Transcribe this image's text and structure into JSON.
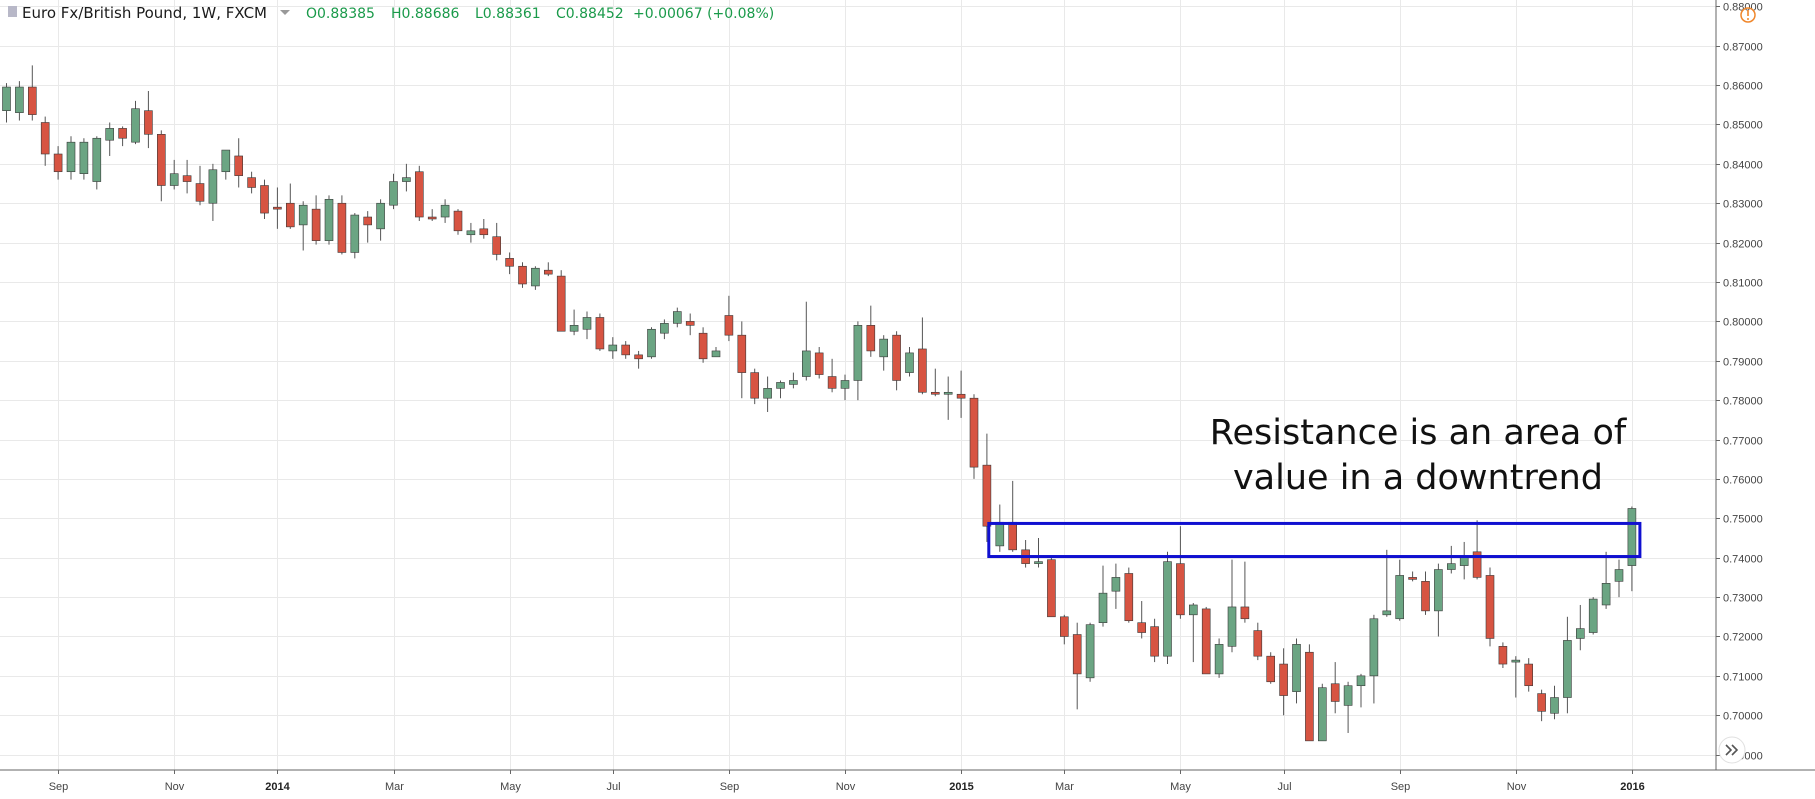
{
  "header": {
    "symbol": "Euro Fx/British Pound, 1W, FXCM",
    "open": "O0.88385",
    "high": "H0.88686",
    "low": "L0.88361",
    "close": "C0.88452",
    "change": "+0.00067 (+0.08%)"
  },
  "colors": {
    "up": "#6ba583",
    "down": "#d75442",
    "wick": "#555555",
    "grid": "#e9e9e9",
    "box": "#1010d0",
    "legend_text": "#1a9a4a"
  },
  "icons": {
    "alert": "warning-circle-icon",
    "scroll": "double-chevron-right-icon"
  },
  "annotation": {
    "line1": "Resistance is an area of",
    "line2": "value in a downtrend",
    "zone": {
      "start": "2015-01-26",
      "end": "2016-01-04",
      "low": 0.7403,
      "high": 0.7487
    }
  },
  "chart_data": {
    "type": "candlestick",
    "interval": "1W",
    "price_axis": {
      "min": 0.6861,
      "max": 0.8816,
      "ticks": [
        0.88,
        0.87,
        0.86,
        0.85,
        0.84,
        0.83,
        0.82,
        0.81,
        0.8,
        0.79,
        0.78,
        0.77,
        0.76,
        0.75,
        0.74,
        0.73,
        0.72,
        0.71,
        0.7,
        0.69
      ],
      "tick_labels": [
        "0.88000",
        "0.87000",
        "0.86000",
        "0.85000",
        "0.84000",
        "0.83000",
        "0.82000",
        "0.81000",
        "0.80000",
        "0.79000",
        "0.78000",
        "0.77000",
        "0.76000",
        "0.75000",
        "0.74000",
        "0.73000",
        "0.72000",
        "0.71000",
        "0.70000",
        "0.69000"
      ]
    },
    "time_axis": {
      "labels": [
        {
          "date": "2013-09-02",
          "text": "Sep",
          "bold": false
        },
        {
          "date": "2013-11-04",
          "text": "Nov",
          "bold": false
        },
        {
          "date": "2013-12-30",
          "text": "2014",
          "bold": true
        },
        {
          "date": "2014-03-03",
          "text": "Mar",
          "bold": false
        },
        {
          "date": "2014-05-05",
          "text": "May",
          "bold": false
        },
        {
          "date": "2014-06-30",
          "text": "Jul",
          "bold": false
        },
        {
          "date": "2014-09-01",
          "text": "Sep",
          "bold": false
        },
        {
          "date": "2014-11-03",
          "text": "Nov",
          "bold": false
        },
        {
          "date": "2015-01-05",
          "text": "2015",
          "bold": true
        },
        {
          "date": "2015-03-02",
          "text": "Mar",
          "bold": false
        },
        {
          "date": "2015-05-04",
          "text": "May",
          "bold": false
        },
        {
          "date": "2015-06-29",
          "text": "Jul",
          "bold": false
        },
        {
          "date": "2015-08-31",
          "text": "Sep",
          "bold": false
        },
        {
          "date": "2015-11-02",
          "text": "Nov",
          "bold": false
        },
        {
          "date": "2016-01-04",
          "text": "2016",
          "bold": true
        }
      ]
    },
    "candles": [
      {
        "date": "2013-08-05",
        "o": 0.8535,
        "h": 0.8605,
        "l": 0.8505,
        "c": 0.8595
      },
      {
        "date": "2013-08-12",
        "o": 0.853,
        "h": 0.861,
        "l": 0.851,
        "c": 0.8595
      },
      {
        "date": "2013-08-19",
        "o": 0.8595,
        "h": 0.865,
        "l": 0.851,
        "c": 0.8525
      },
      {
        "date": "2013-08-26",
        "o": 0.8505,
        "h": 0.852,
        "l": 0.8395,
        "c": 0.8425
      },
      {
        "date": "2013-09-02",
        "o": 0.8425,
        "h": 0.8445,
        "l": 0.836,
        "c": 0.838
      },
      {
        "date": "2013-09-09",
        "o": 0.838,
        "h": 0.847,
        "l": 0.836,
        "c": 0.8455
      },
      {
        "date": "2013-09-16",
        "o": 0.8375,
        "h": 0.8465,
        "l": 0.836,
        "c": 0.8455
      },
      {
        "date": "2013-09-23",
        "o": 0.8355,
        "h": 0.847,
        "l": 0.8335,
        "c": 0.8465
      },
      {
        "date": "2013-09-30",
        "o": 0.846,
        "h": 0.8505,
        "l": 0.842,
        "c": 0.849
      },
      {
        "date": "2013-10-07",
        "o": 0.849,
        "h": 0.8495,
        "l": 0.8445,
        "c": 0.8465
      },
      {
        "date": "2013-10-14",
        "o": 0.8455,
        "h": 0.856,
        "l": 0.845,
        "c": 0.854
      },
      {
        "date": "2013-10-21",
        "o": 0.8535,
        "h": 0.8585,
        "l": 0.844,
        "c": 0.8475
      },
      {
        "date": "2013-10-28",
        "o": 0.8475,
        "h": 0.8485,
        "l": 0.8305,
        "c": 0.8345
      },
      {
        "date": "2013-11-04",
        "o": 0.8345,
        "h": 0.841,
        "l": 0.8335,
        "c": 0.8375
      },
      {
        "date": "2013-11-11",
        "o": 0.837,
        "h": 0.841,
        "l": 0.8325,
        "c": 0.8355
      },
      {
        "date": "2013-11-18",
        "o": 0.835,
        "h": 0.8395,
        "l": 0.8295,
        "c": 0.8305
      },
      {
        "date": "2013-11-25",
        "o": 0.83,
        "h": 0.84,
        "l": 0.8255,
        "c": 0.8385
      },
      {
        "date": "2013-12-02",
        "o": 0.838,
        "h": 0.8435,
        "l": 0.836,
        "c": 0.8435
      },
      {
        "date": "2013-12-09",
        "o": 0.842,
        "h": 0.8465,
        "l": 0.834,
        "c": 0.837
      },
      {
        "date": "2013-12-16",
        "o": 0.8365,
        "h": 0.838,
        "l": 0.8325,
        "c": 0.834
      },
      {
        "date": "2013-12-23",
        "o": 0.8345,
        "h": 0.836,
        "l": 0.826,
        "c": 0.8275
      },
      {
        "date": "2013-12-30",
        "o": 0.829,
        "h": 0.834,
        "l": 0.8235,
        "c": 0.8285
      },
      {
        "date": "2014-01-06",
        "o": 0.83,
        "h": 0.835,
        "l": 0.8235,
        "c": 0.824
      },
      {
        "date": "2014-01-13",
        "o": 0.8245,
        "h": 0.8305,
        "l": 0.818,
        "c": 0.8295
      },
      {
        "date": "2014-01-20",
        "o": 0.8285,
        "h": 0.832,
        "l": 0.8195,
        "c": 0.8205
      },
      {
        "date": "2014-01-27",
        "o": 0.8205,
        "h": 0.832,
        "l": 0.8195,
        "c": 0.831
      },
      {
        "date": "2014-02-03",
        "o": 0.83,
        "h": 0.832,
        "l": 0.817,
        "c": 0.8175
      },
      {
        "date": "2014-02-10",
        "o": 0.8175,
        "h": 0.8275,
        "l": 0.816,
        "c": 0.827
      },
      {
        "date": "2014-02-17",
        "o": 0.8265,
        "h": 0.828,
        "l": 0.82,
        "c": 0.8245
      },
      {
        "date": "2014-02-24",
        "o": 0.8235,
        "h": 0.831,
        "l": 0.8205,
        "c": 0.83
      },
      {
        "date": "2014-03-03",
        "o": 0.8295,
        "h": 0.8375,
        "l": 0.8285,
        "c": 0.8355
      },
      {
        "date": "2014-03-10",
        "o": 0.8355,
        "h": 0.84,
        "l": 0.833,
        "c": 0.8365
      },
      {
        "date": "2014-03-17",
        "o": 0.838,
        "h": 0.8395,
        "l": 0.8255,
        "c": 0.8265
      },
      {
        "date": "2014-03-24",
        "o": 0.8265,
        "h": 0.8285,
        "l": 0.8255,
        "c": 0.826
      },
      {
        "date": "2014-03-31",
        "o": 0.8265,
        "h": 0.831,
        "l": 0.825,
        "c": 0.8295
      },
      {
        "date": "2014-04-07",
        "o": 0.828,
        "h": 0.8285,
        "l": 0.822,
        "c": 0.823
      },
      {
        "date": "2014-04-14",
        "o": 0.822,
        "h": 0.825,
        "l": 0.82,
        "c": 0.823
      },
      {
        "date": "2014-04-21",
        "o": 0.8235,
        "h": 0.826,
        "l": 0.821,
        "c": 0.822
      },
      {
        "date": "2014-04-28",
        "o": 0.8215,
        "h": 0.825,
        "l": 0.8155,
        "c": 0.817
      },
      {
        "date": "2014-05-05",
        "o": 0.816,
        "h": 0.8175,
        "l": 0.812,
        "c": 0.814
      },
      {
        "date": "2014-05-12",
        "o": 0.814,
        "h": 0.815,
        "l": 0.8085,
        "c": 0.8095
      },
      {
        "date": "2014-05-19",
        "o": 0.809,
        "h": 0.814,
        "l": 0.808,
        "c": 0.8135
      },
      {
        "date": "2014-05-26",
        "o": 0.813,
        "h": 0.815,
        "l": 0.8115,
        "c": 0.812
      },
      {
        "date": "2014-06-02",
        "o": 0.8115,
        "h": 0.813,
        "l": 0.7975,
        "c": 0.7975
      },
      {
        "date": "2014-06-09",
        "o": 0.7975,
        "h": 0.803,
        "l": 0.7965,
        "c": 0.799
      },
      {
        "date": "2014-06-16",
        "o": 0.798,
        "h": 0.8025,
        "l": 0.7955,
        "c": 0.801
      },
      {
        "date": "2014-06-23",
        "o": 0.801,
        "h": 0.802,
        "l": 0.7925,
        "c": 0.793
      },
      {
        "date": "2014-06-30",
        "o": 0.7925,
        "h": 0.796,
        "l": 0.7905,
        "c": 0.794
      },
      {
        "date": "2014-07-07",
        "o": 0.794,
        "h": 0.795,
        "l": 0.7905,
        "c": 0.7915
      },
      {
        "date": "2014-07-14",
        "o": 0.7915,
        "h": 0.7925,
        "l": 0.788,
        "c": 0.7905
      },
      {
        "date": "2014-07-21",
        "o": 0.791,
        "h": 0.7985,
        "l": 0.7905,
        "c": 0.798
      },
      {
        "date": "2014-07-28",
        "o": 0.797,
        "h": 0.8005,
        "l": 0.7955,
        "c": 0.7995
      },
      {
        "date": "2014-08-04",
        "o": 0.7995,
        "h": 0.8035,
        "l": 0.7985,
        "c": 0.8025
      },
      {
        "date": "2014-08-11",
        "o": 0.8,
        "h": 0.802,
        "l": 0.7965,
        "c": 0.799
      },
      {
        "date": "2014-08-18",
        "o": 0.797,
        "h": 0.7985,
        "l": 0.7895,
        "c": 0.7905
      },
      {
        "date": "2014-08-25",
        "o": 0.791,
        "h": 0.7935,
        "l": 0.791,
        "c": 0.7925
      },
      {
        "date": "2014-09-01",
        "o": 0.8015,
        "h": 0.8065,
        "l": 0.795,
        "c": 0.7965
      },
      {
        "date": "2014-09-08",
        "o": 0.7965,
        "h": 0.8,
        "l": 0.7805,
        "c": 0.787
      },
      {
        "date": "2014-09-15",
        "o": 0.787,
        "h": 0.788,
        "l": 0.779,
        "c": 0.7805
      },
      {
        "date": "2014-09-22",
        "o": 0.7805,
        "h": 0.786,
        "l": 0.777,
        "c": 0.783
      },
      {
        "date": "2014-09-29",
        "o": 0.783,
        "h": 0.785,
        "l": 0.7805,
        "c": 0.7845
      },
      {
        "date": "2014-10-06",
        "o": 0.784,
        "h": 0.787,
        "l": 0.783,
        "c": 0.785
      },
      {
        "date": "2014-10-13",
        "o": 0.786,
        "h": 0.805,
        "l": 0.785,
        "c": 0.7925
      },
      {
        "date": "2014-10-20",
        "o": 0.792,
        "h": 0.7935,
        "l": 0.7855,
        "c": 0.7865
      },
      {
        "date": "2014-10-27",
        "o": 0.786,
        "h": 0.7905,
        "l": 0.782,
        "c": 0.783
      },
      {
        "date": "2014-11-03",
        "o": 0.783,
        "h": 0.7865,
        "l": 0.78,
        "c": 0.785
      },
      {
        "date": "2014-11-10",
        "o": 0.785,
        "h": 0.8,
        "l": 0.78,
        "c": 0.799
      },
      {
        "date": "2014-11-17",
        "o": 0.799,
        "h": 0.804,
        "l": 0.791,
        "c": 0.7925
      },
      {
        "date": "2014-11-24",
        "o": 0.791,
        "h": 0.7965,
        "l": 0.7875,
        "c": 0.7955
      },
      {
        "date": "2014-12-01",
        "o": 0.7965,
        "h": 0.7975,
        "l": 0.7825,
        "c": 0.785
      },
      {
        "date": "2014-12-08",
        "o": 0.787,
        "h": 0.7935,
        "l": 0.786,
        "c": 0.792
      },
      {
        "date": "2014-12-15",
        "o": 0.793,
        "h": 0.801,
        "l": 0.7815,
        "c": 0.782
      },
      {
        "date": "2014-12-22",
        "o": 0.782,
        "h": 0.788,
        "l": 0.781,
        "c": 0.7815
      },
      {
        "date": "2014-12-29",
        "o": 0.7815,
        "h": 0.786,
        "l": 0.775,
        "c": 0.782
      },
      {
        "date": "2015-01-05",
        "o": 0.7815,
        "h": 0.7875,
        "l": 0.7755,
        "c": 0.7805
      },
      {
        "date": "2015-01-12",
        "o": 0.7805,
        "h": 0.7815,
        "l": 0.76,
        "c": 0.763
      },
      {
        "date": "2015-01-19",
        "o": 0.7635,
        "h": 0.7715,
        "l": 0.744,
        "c": 0.748
      },
      {
        "date": "2015-01-26",
        "o": 0.743,
        "h": 0.7535,
        "l": 0.7415,
        "c": 0.749
      },
      {
        "date": "2015-02-02",
        "o": 0.749,
        "h": 0.7595,
        "l": 0.7415,
        "c": 0.742
      },
      {
        "date": "2015-02-09",
        "o": 0.742,
        "h": 0.7445,
        "l": 0.7375,
        "c": 0.7385
      },
      {
        "date": "2015-02-16",
        "o": 0.7385,
        "h": 0.745,
        "l": 0.7375,
        "c": 0.739
      },
      {
        "date": "2015-02-23",
        "o": 0.7395,
        "h": 0.7405,
        "l": 0.725,
        "c": 0.725
      },
      {
        "date": "2015-03-02",
        "o": 0.725,
        "h": 0.7255,
        "l": 0.718,
        "c": 0.72
      },
      {
        "date": "2015-03-09",
        "o": 0.7205,
        "h": 0.7235,
        "l": 0.7015,
        "c": 0.7105
      },
      {
        "date": "2015-03-16",
        "o": 0.7095,
        "h": 0.7235,
        "l": 0.7085,
        "c": 0.723
      },
      {
        "date": "2015-03-23",
        "o": 0.7235,
        "h": 0.738,
        "l": 0.7225,
        "c": 0.731
      },
      {
        "date": "2015-03-30",
        "o": 0.7315,
        "h": 0.7385,
        "l": 0.727,
        "c": 0.735
      },
      {
        "date": "2015-04-06",
        "o": 0.736,
        "h": 0.7375,
        "l": 0.7235,
        "c": 0.724
      },
      {
        "date": "2015-04-13",
        "o": 0.7235,
        "h": 0.729,
        "l": 0.7195,
        "c": 0.721
      },
      {
        "date": "2015-04-20",
        "o": 0.7225,
        "h": 0.7245,
        "l": 0.7135,
        "c": 0.715
      },
      {
        "date": "2015-04-27",
        "o": 0.715,
        "h": 0.7415,
        "l": 0.713,
        "c": 0.739
      },
      {
        "date": "2015-05-04",
        "o": 0.7385,
        "h": 0.748,
        "l": 0.7245,
        "c": 0.7255
      },
      {
        "date": "2015-05-11",
        "o": 0.7255,
        "h": 0.7285,
        "l": 0.7135,
        "c": 0.728
      },
      {
        "date": "2015-05-18",
        "o": 0.727,
        "h": 0.7275,
        "l": 0.7115,
        "c": 0.7105
      },
      {
        "date": "2015-05-25",
        "o": 0.7105,
        "h": 0.7195,
        "l": 0.7095,
        "c": 0.718
      },
      {
        "date": "2015-06-01",
        "o": 0.7175,
        "h": 0.7395,
        "l": 0.716,
        "c": 0.7275
      },
      {
        "date": "2015-06-08",
        "o": 0.7275,
        "h": 0.739,
        "l": 0.7235,
        "c": 0.7245
      },
      {
        "date": "2015-06-15",
        "o": 0.7215,
        "h": 0.7235,
        "l": 0.714,
        "c": 0.715
      },
      {
        "date": "2015-06-22",
        "o": 0.715,
        "h": 0.716,
        "l": 0.708,
        "c": 0.7085
      },
      {
        "date": "2015-06-29",
        "o": 0.713,
        "h": 0.717,
        "l": 0.7,
        "c": 0.705
      },
      {
        "date": "2015-07-06",
        "o": 0.706,
        "h": 0.7195,
        "l": 0.703,
        "c": 0.718
      },
      {
        "date": "2015-07-13",
        "o": 0.716,
        "h": 0.718,
        "l": 0.6935,
        "c": 0.6935
      },
      {
        "date": "2015-07-20",
        "o": 0.6935,
        "h": 0.708,
        "l": 0.6935,
        "c": 0.707
      },
      {
        "date": "2015-07-27",
        "o": 0.708,
        "h": 0.7135,
        "l": 0.7005,
        "c": 0.7035
      },
      {
        "date": "2015-08-03",
        "o": 0.7025,
        "h": 0.7085,
        "l": 0.6955,
        "c": 0.7075
      },
      {
        "date": "2015-08-10",
        "o": 0.7075,
        "h": 0.7105,
        "l": 0.702,
        "c": 0.71
      },
      {
        "date": "2015-08-17",
        "o": 0.71,
        "h": 0.7255,
        "l": 0.703,
        "c": 0.7245
      },
      {
        "date": "2015-08-24",
        "o": 0.7255,
        "h": 0.742,
        "l": 0.725,
        "c": 0.7265
      },
      {
        "date": "2015-08-31",
        "o": 0.7245,
        "h": 0.7395,
        "l": 0.724,
        "c": 0.7355
      },
      {
        "date": "2015-09-07",
        "o": 0.735,
        "h": 0.7365,
        "l": 0.734,
        "c": 0.7345
      },
      {
        "date": "2015-09-14",
        "o": 0.734,
        "h": 0.7365,
        "l": 0.7255,
        "c": 0.7265
      },
      {
        "date": "2015-09-21",
        "o": 0.7265,
        "h": 0.7385,
        "l": 0.72,
        "c": 0.737
      },
      {
        "date": "2015-09-28",
        "o": 0.737,
        "h": 0.743,
        "l": 0.736,
        "c": 0.7385
      },
      {
        "date": "2015-10-05",
        "o": 0.738,
        "h": 0.744,
        "l": 0.7345,
        "c": 0.7405
      },
      {
        "date": "2015-10-12",
        "o": 0.7415,
        "h": 0.7495,
        "l": 0.7345,
        "c": 0.735
      },
      {
        "date": "2015-10-19",
        "o": 0.7355,
        "h": 0.7375,
        "l": 0.7175,
        "c": 0.7195
      },
      {
        "date": "2015-10-26",
        "o": 0.7175,
        "h": 0.7185,
        "l": 0.712,
        "c": 0.713
      },
      {
        "date": "2015-11-02",
        "o": 0.7135,
        "h": 0.715,
        "l": 0.7045,
        "c": 0.714
      },
      {
        "date": "2015-11-09",
        "o": 0.713,
        "h": 0.7145,
        "l": 0.706,
        "c": 0.7075
      },
      {
        "date": "2015-11-16",
        "o": 0.7055,
        "h": 0.7065,
        "l": 0.6985,
        "c": 0.701
      },
      {
        "date": "2015-11-23",
        "o": 0.7005,
        "h": 0.7075,
        "l": 0.699,
        "c": 0.7045
      },
      {
        "date": "2015-11-30",
        "o": 0.7045,
        "h": 0.725,
        "l": 0.7005,
        "c": 0.719
      },
      {
        "date": "2015-12-07",
        "o": 0.7195,
        "h": 0.728,
        "l": 0.7165,
        "c": 0.722
      },
      {
        "date": "2015-12-14",
        "o": 0.721,
        "h": 0.73,
        "l": 0.7205,
        "c": 0.7295
      },
      {
        "date": "2015-12-21",
        "o": 0.728,
        "h": 0.7415,
        "l": 0.727,
        "c": 0.7335
      },
      {
        "date": "2015-12-28",
        "o": 0.734,
        "h": 0.7395,
        "l": 0.73,
        "c": 0.737
      },
      {
        "date": "2016-01-04",
        "o": 0.738,
        "h": 0.753,
        "l": 0.7315,
        "c": 0.7525
      }
    ]
  }
}
